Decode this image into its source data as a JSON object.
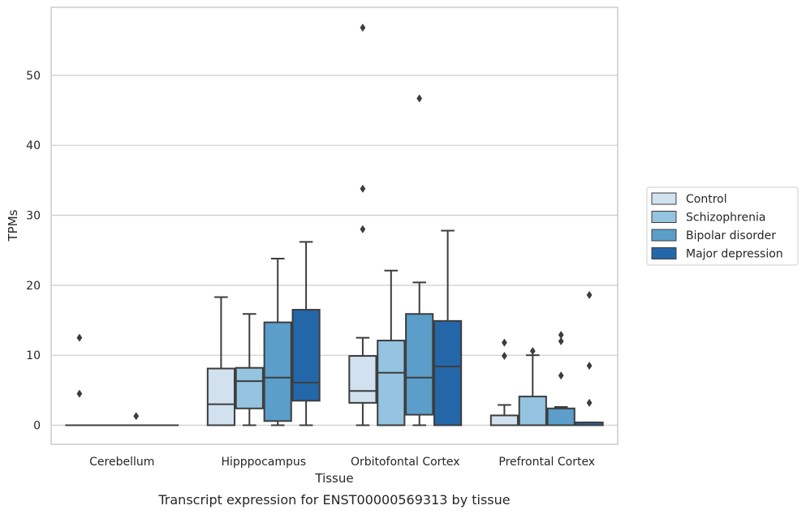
{
  "chart_data": {
    "type": "box",
    "title": "",
    "caption": "Transcript expression for ENST00000569313 by tissue",
    "xlabel": "Tissue",
    "ylabel": "TPMs",
    "ylim": [
      -2.8,
      59.5
    ],
    "yticks": [
      0,
      10,
      20,
      30,
      40,
      50
    ],
    "grid": "horizontal",
    "legend_position": "right",
    "categories": [
      "Cerebellum",
      "Hipppocampus",
      "Orbitofontal Cortex",
      "Prefrontal Cortex"
    ],
    "series": [
      {
        "name": "Control",
        "color": "#d1e1ef",
        "boxes": [
          {
            "q1": 0,
            "median": 0,
            "q3": 0,
            "whisker_low": 0,
            "whisker_high": 0,
            "outliers": [
              12.5,
              4.5
            ]
          },
          {
            "q1": 0,
            "median": 3.0,
            "q3": 8.1,
            "whisker_low": 0,
            "whisker_high": 18.3,
            "outliers": []
          },
          {
            "q1": 3.2,
            "median": 4.9,
            "q3": 9.9,
            "whisker_low": 0,
            "whisker_high": 12.5,
            "outliers": [
              56.8,
              33.8,
              28.0
            ]
          },
          {
            "q1": 0,
            "median": 0,
            "q3": 1.4,
            "whisker_low": 0,
            "whisker_high": 2.9,
            "outliers": [
              11.8,
              9.9
            ]
          }
        ]
      },
      {
        "name": "Schizophrenia",
        "color": "#94c4df",
        "boxes": [
          {
            "q1": 0,
            "median": 0,
            "q3": 0,
            "whisker_low": 0,
            "whisker_high": 0,
            "outliers": []
          },
          {
            "q1": 2.4,
            "median": 6.3,
            "q3": 8.2,
            "whisker_low": 0,
            "whisker_high": 15.9,
            "outliers": []
          },
          {
            "q1": 0,
            "median": 7.5,
            "q3": 12.1,
            "whisker_low": 0,
            "whisker_high": 22.1,
            "outliers": []
          },
          {
            "q1": 0,
            "median": 0,
            "q3": 4.1,
            "whisker_low": 0,
            "whisker_high": 10.0,
            "outliers": [
              10.6
            ]
          }
        ]
      },
      {
        "name": "Bipolar disorder",
        "color": "#5a9ec9",
        "boxes": [
          {
            "q1": 0,
            "median": 0,
            "q3": 0,
            "whisker_low": 0,
            "whisker_high": 0,
            "outliers": [
              1.3
            ]
          },
          {
            "q1": 0.6,
            "median": 6.8,
            "q3": 14.7,
            "whisker_low": 0,
            "whisker_high": 23.8,
            "outliers": []
          },
          {
            "q1": 1.5,
            "median": 6.8,
            "q3": 15.9,
            "whisker_low": 0,
            "whisker_high": 20.4,
            "outliers": [
              46.7
            ]
          },
          {
            "q1": 0,
            "median": 0,
            "q3": 2.4,
            "whisker_low": 0,
            "whisker_high": 2.6,
            "outliers": [
              12.9,
              12.0,
              7.1
            ]
          }
        ]
      },
      {
        "name": "Major depression",
        "color": "#2467a9",
        "boxes": [
          {
            "q1": 0,
            "median": 0,
            "q3": 0,
            "whisker_low": 0,
            "whisker_high": 0,
            "outliers": []
          },
          {
            "q1": 3.5,
            "median": 6.1,
            "q3": 16.5,
            "whisker_low": 0,
            "whisker_high": 26.2,
            "outliers": []
          },
          {
            "q1": 0,
            "median": 8.4,
            "q3": 14.9,
            "whisker_low": 0,
            "whisker_high": 27.8,
            "outliers": []
          },
          {
            "q1": 0,
            "median": 0,
            "q3": 0.4,
            "whisker_low": 0,
            "whisker_high": 0.4,
            "outliers": [
              18.6,
              8.5,
              3.2
            ]
          }
        ]
      }
    ]
  }
}
